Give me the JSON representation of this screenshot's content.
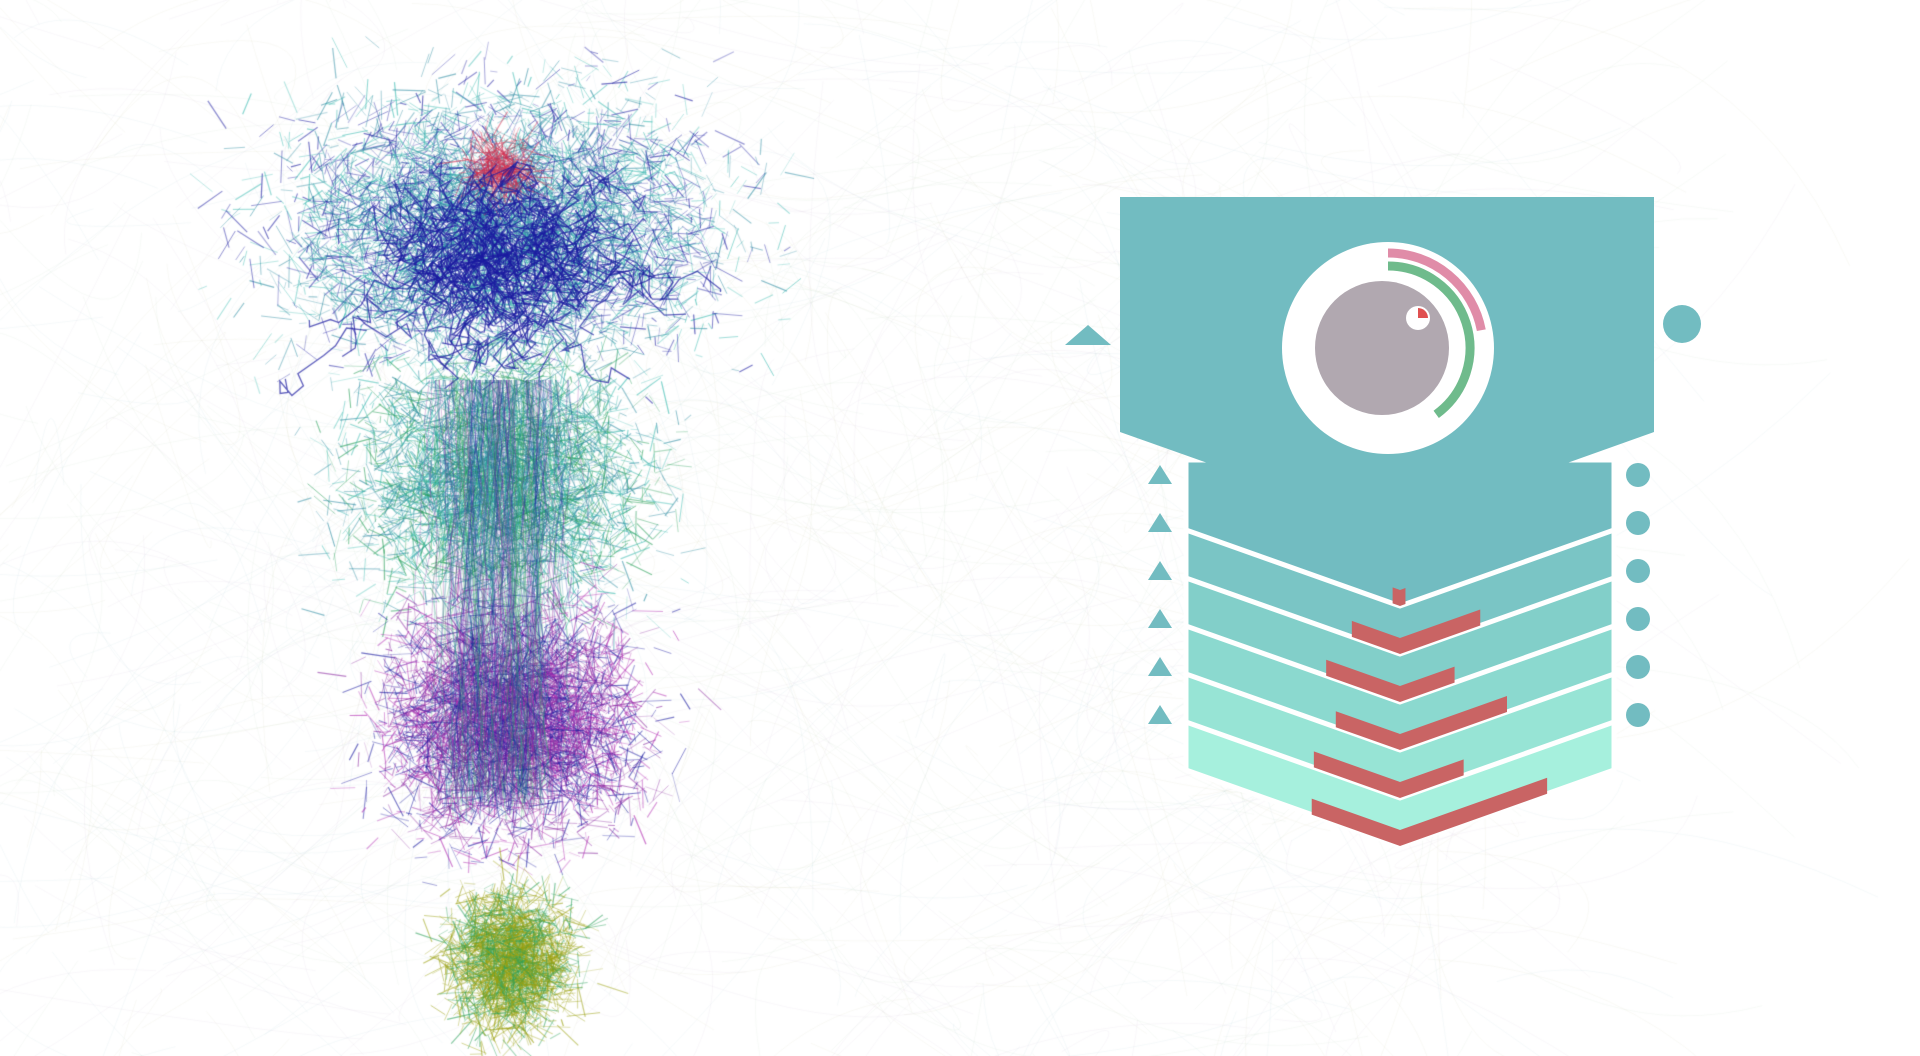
{
  "colors": {
    "background": "#ffffff",
    "glyph_header": "#72bcc1",
    "glyph_bands": [
      "#72bcc1",
      "#7ac5c5",
      "#82cfc9",
      "#8bd9cf",
      "#97e4d5",
      "#a6f0dd"
    ],
    "circle_face": "#ffffff",
    "core": "#b1a8b0",
    "ring_outer": "#e08ca8",
    "ring_inner": "#6fbb8c",
    "bars": "#c96464",
    "marker_fill": "#72bcc1",
    "dot_accent": "#e05050",
    "network_palette": [
      "#1a1aa0",
      "#2a8aa0",
      "#3bbab0",
      "#2aa05a",
      "#8a2aa0",
      "#b02ab0",
      "#9aa010",
      "#d03050"
    ]
  },
  "glyph": {
    "ring_outer_fraction": 0.22,
    "ring_inner_fraction": 0.4,
    "core_indicator_fraction": 0.25,
    "band_count": 6,
    "band_bar_values": [
      0.0,
      0.03,
      0.3,
      0.3,
      0.4,
      0.35,
      0.55
    ]
  },
  "markers": {
    "left_shape": "triangle",
    "right_shape": "circle",
    "row_count": 6
  },
  "network": {
    "style": "force-directed edge bundle",
    "clusters": [
      "blue-teal",
      "green",
      "purple",
      "olive",
      "red"
    ]
  }
}
